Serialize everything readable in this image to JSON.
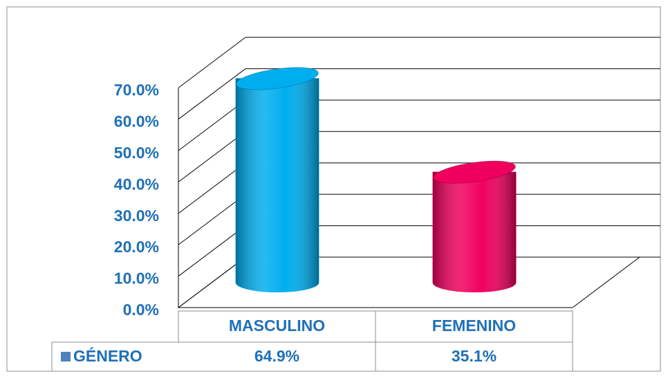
{
  "chart_data": {
    "type": "bar3d",
    "categories": [
      "MASCULINO",
      "FEMENINO"
    ],
    "series": [
      {
        "name": "GÉNERO",
        "color": "#4f81bd",
        "point_colors": [
          "#00aeef",
          "#f0005e"
        ],
        "values": [
          64.9,
          35.1
        ],
        "value_labels": [
          "64.9%",
          "35.1%"
        ]
      }
    ],
    "ylim": [
      0,
      70
    ],
    "yticks": [
      {
        "value": 0,
        "label": "0.0%"
      },
      {
        "value": 10,
        "label": "10.0%"
      },
      {
        "value": 20,
        "label": "20.0%"
      },
      {
        "value": 30,
        "label": "30.0%"
      },
      {
        "value": 40,
        "label": "40.0%"
      },
      {
        "value": 50,
        "label": "50.0%"
      },
      {
        "value": 60,
        "label": "60.0%"
      },
      {
        "value": 70,
        "label": "70.0%"
      }
    ],
    "grid": true,
    "legend": "table"
  }
}
